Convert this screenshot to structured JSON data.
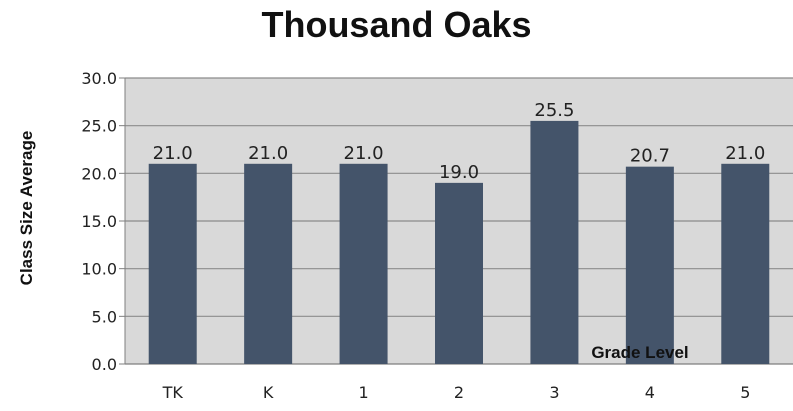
{
  "chart_data": {
    "type": "bar",
    "title": "Thousand Oaks",
    "xlabel": "Grade Level",
    "ylabel": "Class Size Average",
    "categories": [
      "TK",
      "K",
      "1",
      "2",
      "3",
      "4",
      "5"
    ],
    "values": [
      21.0,
      21.0,
      21.0,
      19.0,
      25.5,
      20.7,
      21.0
    ],
    "value_labels": [
      "21.0",
      "21.0",
      "21.0",
      "19.0",
      "25.5",
      "20.7",
      "21.0"
    ],
    "ylim": [
      0,
      30
    ],
    "yticks": [
      "0.0",
      "5.0",
      "10.0",
      "15.0",
      "20.0",
      "25.0",
      "30.0"
    ],
    "grid": true,
    "colors": {
      "bar": "#44546a",
      "plot_bg": "#d9d9d9",
      "grid": "#8c8c8c",
      "axis": "#7f7f7f"
    }
  }
}
